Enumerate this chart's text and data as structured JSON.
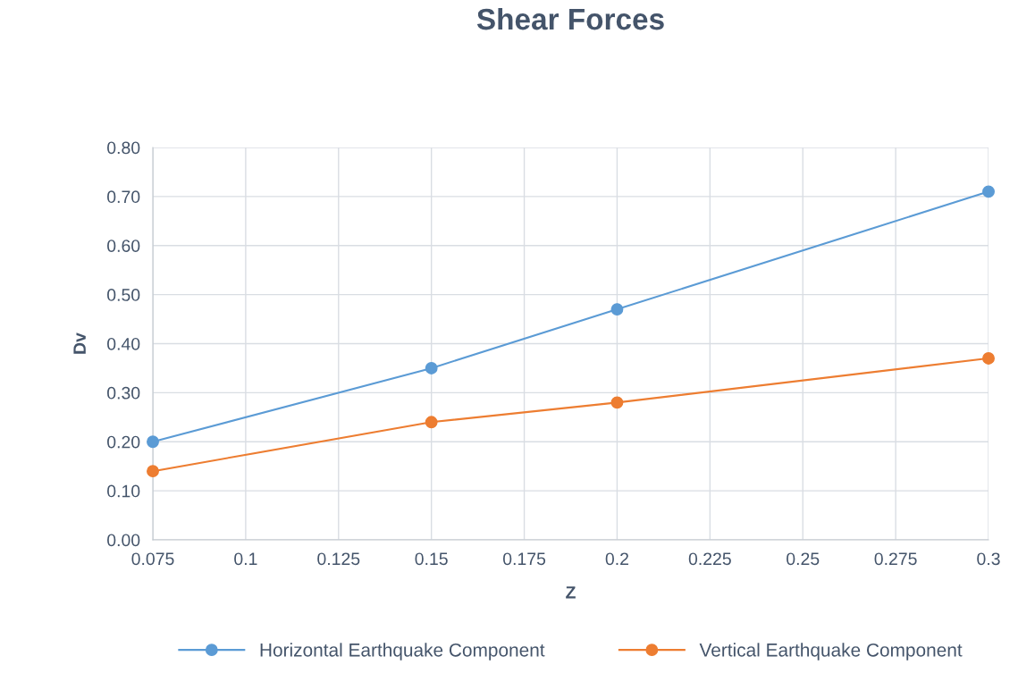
{
  "chart_data": {
    "type": "line",
    "title": "Shear Forces",
    "xlabel": "Z",
    "ylabel": "Dv",
    "x": [
      0.075,
      0.15,
      0.2,
      0.3
    ],
    "series": [
      {
        "name": "Horizontal Earthquake Component",
        "color": "#5b9bd5",
        "values": [
          0.2,
          0.35,
          0.47,
          0.71
        ]
      },
      {
        "name": "Vertical Earthquake Component",
        "color": "#ed7d31",
        "values": [
          0.14,
          0.24,
          0.28,
          0.37
        ]
      }
    ],
    "xlim": [
      0.075,
      0.3
    ],
    "xticks": [
      0.075,
      0.1,
      0.125,
      0.15,
      0.175,
      0.2,
      0.225,
      0.25,
      0.275,
      0.3
    ],
    "ylim": [
      0,
      0.8
    ],
    "yticks": [
      {
        "value": 0,
        "label": "0.00"
      },
      {
        "value": 0.1,
        "label": "0.10"
      },
      {
        "value": 0.2,
        "label": "0.20"
      },
      {
        "value": 0.3,
        "label": "0.30"
      },
      {
        "value": 0.4,
        "label": "0.40"
      },
      {
        "value": 0.5,
        "label": "0.50"
      },
      {
        "value": 0.6,
        "label": "0.60"
      },
      {
        "value": 0.7,
        "label": "0.70"
      },
      {
        "value": 0.8,
        "label": "0.80"
      }
    ],
    "grid": true,
    "legend": "bottom",
    "marker": "circle",
    "line_style": "solid"
  }
}
